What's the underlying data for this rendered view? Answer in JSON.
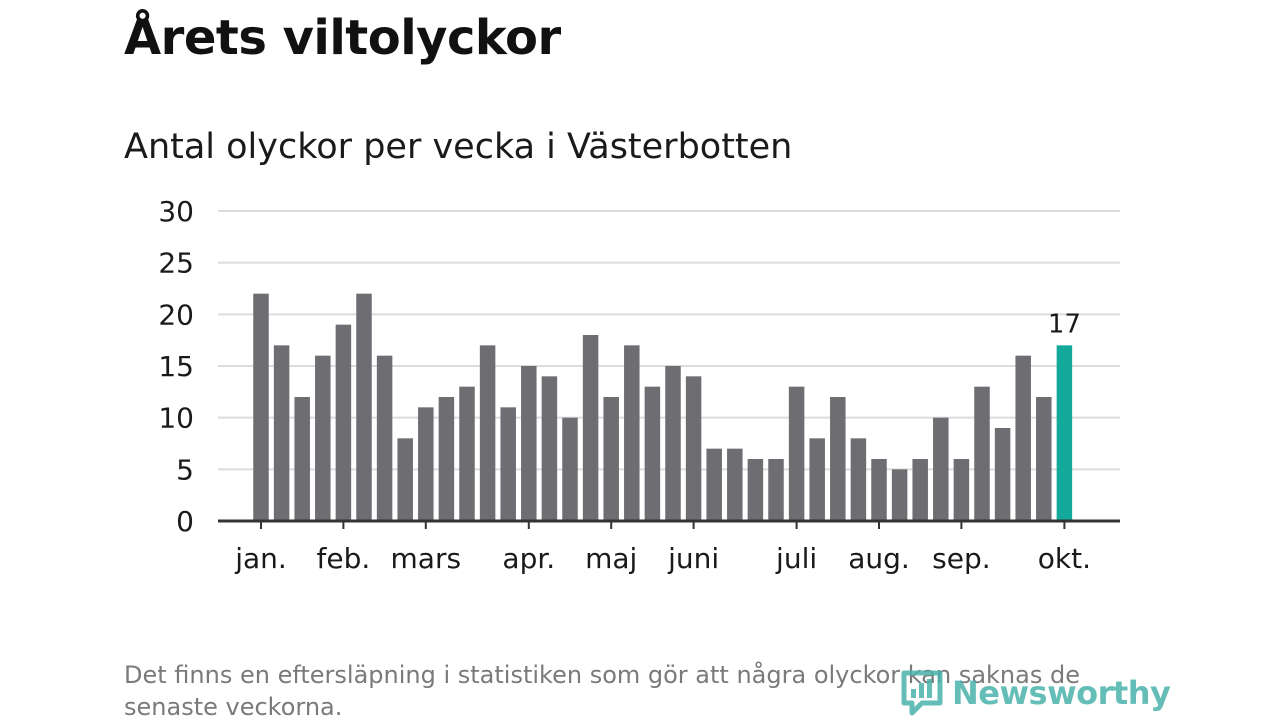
{
  "title": "Årets viltolyckor",
  "subtitle": "Antal olyckor per vecka i Västerbotten",
  "footnote": "Det finns en eftersläpning i statistiken som gör att några olyckor kan saknas de senaste veckorna.",
  "logo": {
    "text": "Newsworthy",
    "icon": "newsworthy-logo-icon"
  },
  "colors": {
    "bar": "#6e6d72",
    "highlight": "#12a99b",
    "grid": "#dcdcdc",
    "axis": "#333333",
    "text": "#1a1a1a",
    "logo": "#4bb2ab"
  },
  "chart_data": {
    "type": "bar",
    "title": "Antal olyckor per vecka i Västerbotten",
    "xlabel": "",
    "ylabel": "",
    "ylim": [
      0,
      30
    ],
    "yticks": [
      0,
      5,
      10,
      15,
      20,
      25,
      30
    ],
    "grid": true,
    "month_labels": [
      {
        "label": "jan.",
        "week_index": 0
      },
      {
        "label": "feb.",
        "week_index": 4
      },
      {
        "label": "mars",
        "week_index": 8
      },
      {
        "label": "apr.",
        "week_index": 13
      },
      {
        "label": "maj",
        "week_index": 17
      },
      {
        "label": "juni",
        "week_index": 21
      },
      {
        "label": "juli",
        "week_index": 26
      },
      {
        "label": "aug.",
        "week_index": 30
      },
      {
        "label": "sep.",
        "week_index": 34
      },
      {
        "label": "okt.",
        "week_index": 39
      }
    ],
    "values": [
      22,
      17,
      12,
      16,
      19,
      22,
      16,
      8,
      11,
      12,
      13,
      17,
      11,
      15,
      14,
      10,
      18,
      12,
      17,
      13,
      15,
      14,
      7,
      7,
      6,
      6,
      13,
      8,
      12,
      8,
      6,
      5,
      6,
      10,
      6,
      13,
      9,
      16,
      12,
      17
    ],
    "highlight_index": 39,
    "highlight_label": "17"
  }
}
